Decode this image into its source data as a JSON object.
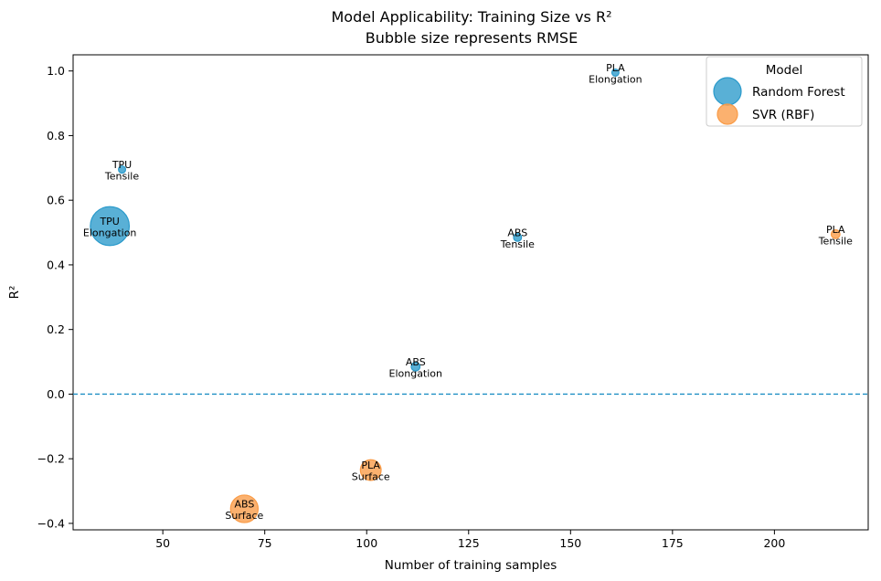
{
  "chart_data": {
    "type": "scatter",
    "title": "Model Applicability: Training Size vs R²",
    "subtitle": "Bubble size represents RMSE",
    "xlabel": "Number of training samples",
    "ylabel": "R²",
    "xlim": [
      28,
      223
    ],
    "ylim": [
      -0.42,
      1.05
    ],
    "xticks": [
      50,
      75,
      100,
      125,
      150,
      175,
      200
    ],
    "yticks": [
      -0.4,
      -0.2,
      0.0,
      0.2,
      0.4,
      0.6,
      0.8,
      1.0
    ],
    "xtick_labels": [
      "50",
      "75",
      "100",
      "125",
      "150",
      "175",
      "200"
    ],
    "ytick_labels": [
      "−0.4",
      "−0.2",
      "0.0",
      "0.2",
      "0.4",
      "0.6",
      "0.8",
      "1.0"
    ],
    "reference_line": {
      "y": 0.0,
      "style": "dashed",
      "color": "#1f8fc4"
    },
    "grid": false,
    "legend": {
      "title": "Model",
      "placement": "top-right"
    },
    "series": [
      {
        "name": "Random Forest",
        "color": "#2a9acb",
        "points": [
          {
            "x": 37,
            "y": 0.52,
            "rmse": 60,
            "label_top": "TPU",
            "label_bottom": "Elongation"
          },
          {
            "x": 40,
            "y": 0.695,
            "rmse": 2,
            "label_top": "TPU",
            "label_bottom": "Tensile"
          },
          {
            "x": 112,
            "y": 0.085,
            "rmse": 3,
            "label_top": "ABS",
            "label_bottom": "Elongation"
          },
          {
            "x": 137,
            "y": 0.485,
            "rmse": 2.5,
            "label_top": "ABS",
            "label_bottom": "Tensile"
          },
          {
            "x": 161,
            "y": 0.995,
            "rmse": 2,
            "label_top": "PLA",
            "label_bottom": "Elongation"
          }
        ]
      },
      {
        "name": "SVR (RBF)",
        "color": "#fa9b46",
        "points": [
          {
            "x": 70,
            "y": -0.355,
            "rmse": 30,
            "label_top": "ABS",
            "label_bottom": "Surface"
          },
          {
            "x": 101,
            "y": -0.235,
            "rmse": 17,
            "label_top": "PLA",
            "label_bottom": "Surface"
          },
          {
            "x": 215,
            "y": 0.495,
            "rmse": 3,
            "label_top": "PLA",
            "label_bottom": "Tensile"
          }
        ]
      }
    ]
  }
}
